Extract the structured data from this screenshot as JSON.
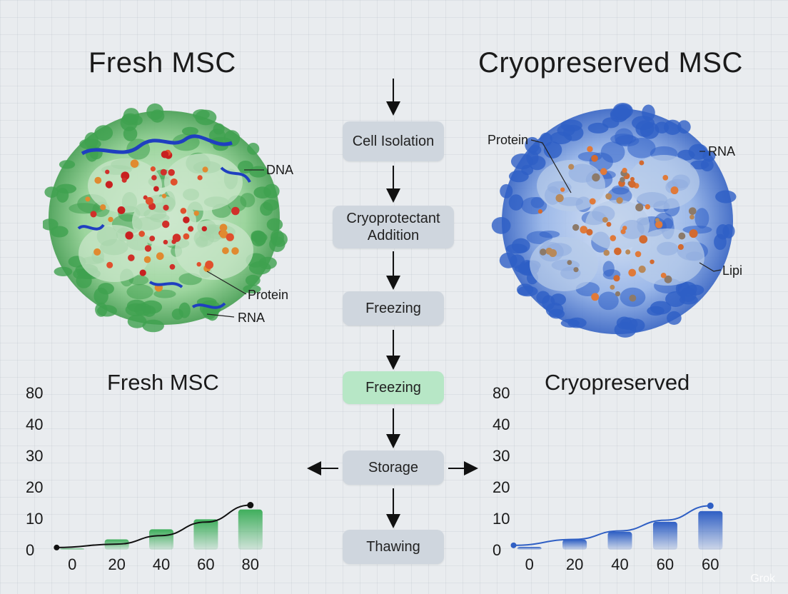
{
  "titles": {
    "fresh": "Fresh MSC",
    "cryo": "Cryopreserved MSC"
  },
  "cell_labels": {
    "fresh": [
      "DNA",
      "Protein",
      "RNA"
    ],
    "cryo": [
      "Protein",
      "RNA",
      "Lipid"
    ]
  },
  "flow": {
    "steps": [
      "Cell Isolation",
      "Cryoprotectant Addition",
      "Freezing",
      "Freezing",
      "Storage",
      "Thawing"
    ],
    "highlighted_step": 3,
    "colors": {
      "box": "#cfd6de",
      "highlight": "#b7e7c6"
    }
  },
  "colors": {
    "fresh_green": "#3fae5c",
    "cryo_blue": "#2f5fc4",
    "fresh_line": "#111111",
    "cryo_line": "#2f5fc4"
  },
  "chart_data": [
    {
      "type": "bar",
      "title": "Fresh MSC",
      "categories": [
        "0",
        "20",
        "40",
        "60",
        "80"
      ],
      "y_ticks": [
        "0",
        "10",
        "20",
        "30",
        "40",
        "80"
      ],
      "values": [
        0.4,
        3.3,
        6.5,
        9.7,
        12.8
      ],
      "trend_line": [
        0.7,
        1.8,
        4.5,
        8.8,
        14.2
      ]
    },
    {
      "type": "bar",
      "title": "Cryopreserved",
      "categories": [
        "0",
        "20",
        "40",
        "60",
        "60"
      ],
      "y_ticks": [
        "0",
        "10",
        "20",
        "30",
        "40",
        "80"
      ],
      "values": [
        0.9,
        3.2,
        5.7,
        8.9,
        12.3
      ],
      "trend_line": [
        1.4,
        3.3,
        6.0,
        9.4,
        14.0
      ]
    }
  ],
  "watermark": "Grok"
}
